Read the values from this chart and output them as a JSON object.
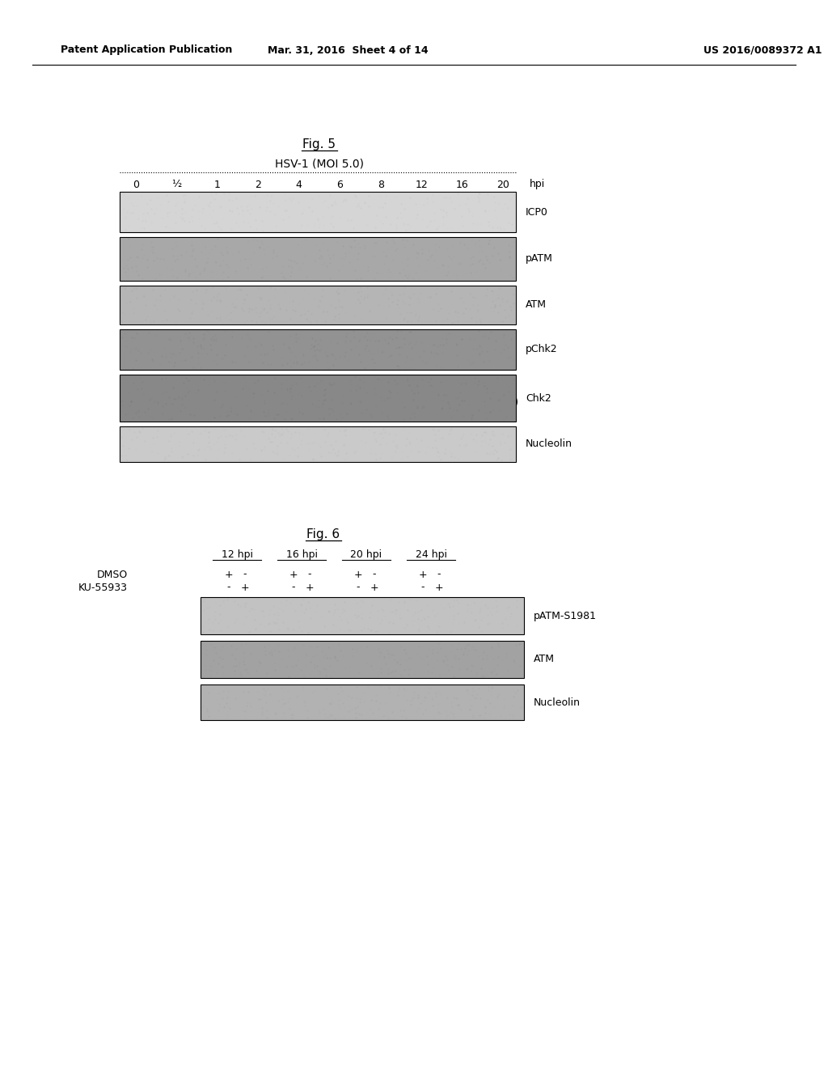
{
  "page_header_left": "Patent Application Publication",
  "page_header_mid": "Mar. 31, 2016  Sheet 4 of 14",
  "page_header_right": "US 2016/0089372 A1",
  "fig5_title": "Fig. 5",
  "fig5_subtitle": "HSV-1 (MOI 5.0)",
  "fig5_timepoints": [
    "0",
    "½",
    "1",
    "2",
    "4",
    "6",
    "8",
    "12",
    "16",
    "20"
  ],
  "fig5_hpi": "hpi",
  "fig5_bands": [
    "ICP0",
    "pATM",
    "ATM",
    "pChk2",
    "Chk2",
    "Nucleolin"
  ],
  "fig6_title": "Fig. 6",
  "fig6_timepoints": [
    "12 hpi",
    "16 hpi",
    "20 hpi",
    "24 hpi"
  ],
  "fig6_row1_label": "DMSO",
  "fig6_row2_label": "KU-55933",
  "fig6_row1_values": [
    "+",
    "-",
    "+",
    "-",
    "+",
    "-",
    "+",
    "-"
  ],
  "fig6_row2_values": [
    "-",
    "+",
    "-",
    "+",
    "-",
    "+",
    "-",
    "+"
  ],
  "fig6_bands": [
    "pATM-S1981",
    "ATM",
    "Nucleolin"
  ],
  "bg_color": "#ffffff",
  "text_color": "#000000"
}
